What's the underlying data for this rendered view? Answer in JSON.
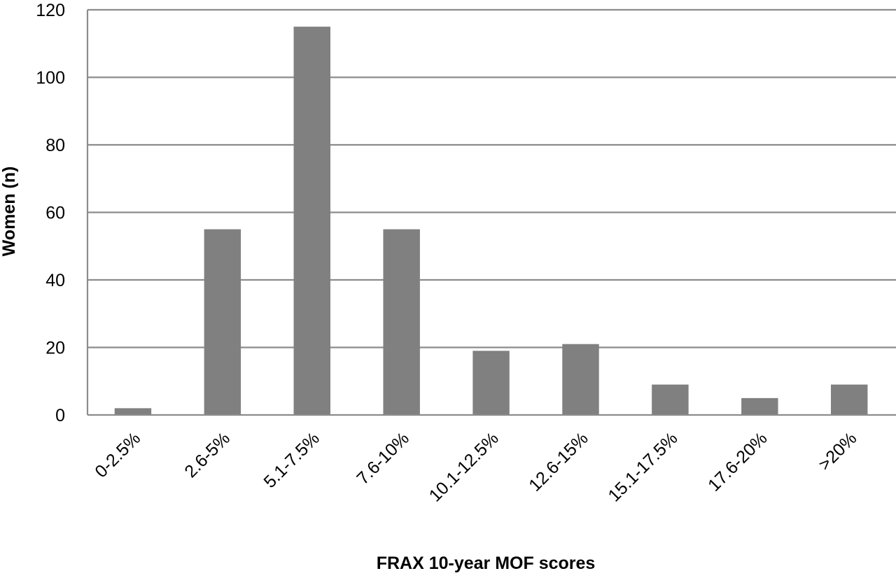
{
  "chart_data": {
    "type": "bar",
    "title": "",
    "xlabel": "FRAX 10-year MOF scores",
    "ylabel": "Women (n)",
    "categories": [
      "0-2.5%",
      "2.6-5%",
      "5.1-7.5%",
      "7.6-10%",
      "10.1-12.5%",
      "12.6-15%",
      "15.1-17.5%",
      "17.6-20%",
      ">20%"
    ],
    "values": [
      2,
      55,
      115,
      55,
      19,
      21,
      9,
      5,
      9
    ],
    "ylim": [
      0,
      120
    ],
    "yticks": [
      0,
      20,
      40,
      60,
      80,
      100,
      120
    ],
    "grid": true,
    "legend": "none",
    "bar_color": "#808080",
    "grid_color": "#8c8c8c"
  }
}
